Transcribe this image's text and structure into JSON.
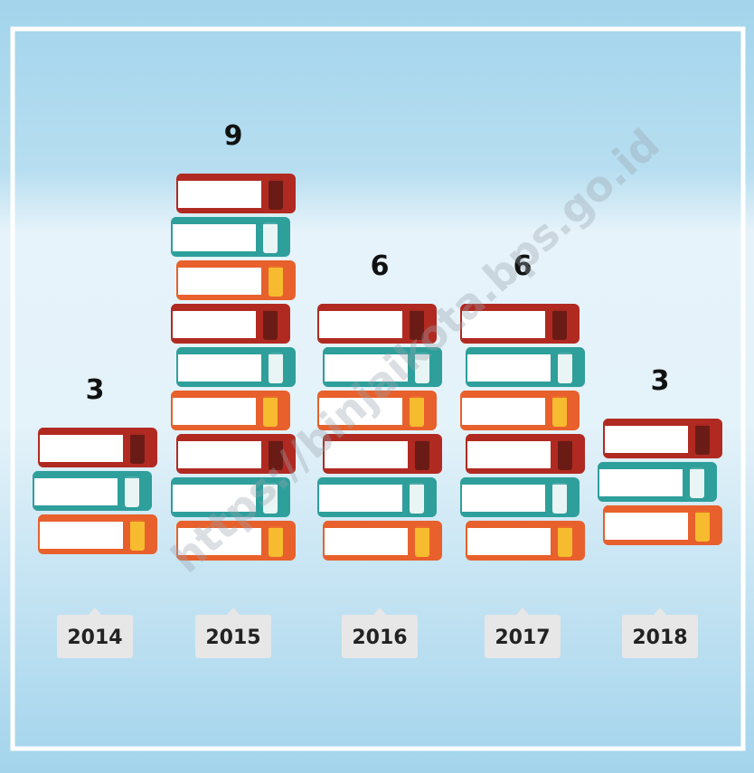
{
  "chart_data": {
    "type": "pictograph",
    "categories": [
      "2014",
      "2015",
      "2016",
      "2017",
      "2018"
    ],
    "values": [
      3,
      9,
      6,
      6,
      3
    ],
    "watermark": "https://binjaikota.bps.go.id"
  }
}
